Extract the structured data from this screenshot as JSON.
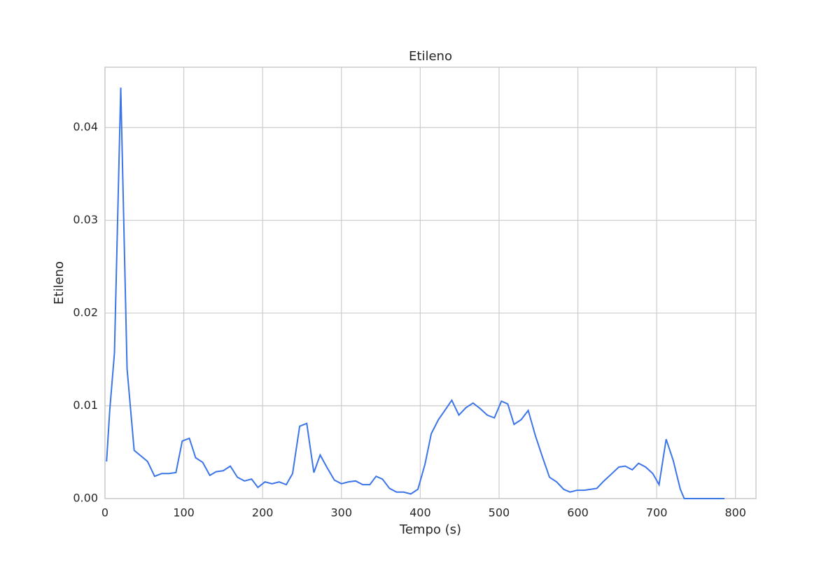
{
  "chart_data": {
    "type": "line",
    "title": "Etileno",
    "x_label": "Tempo (s)",
    "y_label": "Etileno",
    "x": [
      2,
      6,
      12,
      20,
      28,
      37,
      54,
      63,
      72,
      81,
      90,
      98,
      107,
      115,
      124,
      133,
      141,
      150,
      159,
      168,
      177,
      186,
      194,
      203,
      212,
      221,
      230,
      238,
      247,
      256,
      265,
      273,
      282,
      291,
      300,
      309,
      318,
      327,
      336,
      344,
      352,
      361,
      370,
      379,
      388,
      397,
      406,
      414,
      423,
      432,
      440,
      449,
      458,
      467,
      476,
      485,
      494,
      503,
      511,
      519,
      528,
      537,
      546,
      555,
      564,
      573,
      582,
      590,
      599,
      608,
      624,
      633,
      642,
      652,
      660,
      669,
      677,
      686,
      695,
      703,
      712,
      721,
      730,
      735,
      746,
      764,
      786
    ],
    "series": [
      {
        "name": "Etileno",
        "color": "#3b75e8",
        "values": [
          0.004,
          0.0095,
          0.0157,
          0.0443,
          0.014,
          0.0052,
          0.004,
          0.0024,
          0.0027,
          0.0027,
          0.0028,
          0.0062,
          0.0065,
          0.0044,
          0.0039,
          0.0025,
          0.0029,
          0.003,
          0.0035,
          0.0023,
          0.0019,
          0.0021,
          0.0012,
          0.0018,
          0.0016,
          0.0018,
          0.0015,
          0.0027,
          0.0078,
          0.0081,
          0.0028,
          0.0047,
          0.0033,
          0.002,
          0.0016,
          0.0018,
          0.0019,
          0.0015,
          0.0015,
          0.0024,
          0.0021,
          0.0011,
          0.0007,
          0.0007,
          0.0005,
          0.001,
          0.0037,
          0.007,
          0.0085,
          0.0096,
          0.0106,
          0.009,
          0.0098,
          0.0103,
          0.0097,
          0.009,
          0.0087,
          0.0105,
          0.0102,
          0.008,
          0.0085,
          0.0095,
          0.0068,
          0.0045,
          0.0023,
          0.0018,
          0.001,
          0.0007,
          0.0009,
          0.0009,
          0.0011,
          0.0019,
          0.0026,
          0.0034,
          0.0035,
          0.0031,
          0.0038,
          0.0034,
          0.0027,
          0.0015,
          0.0064,
          0.0041,
          0.001,
          0,
          0,
          0,
          0
        ]
      }
    ],
    "xlim": [
      0,
      826
    ],
    "ylim": [
      0,
      0.0465
    ],
    "xticks": [
      0,
      100,
      200,
      300,
      400,
      500,
      600,
      700,
      800
    ],
    "yticks": [
      {
        "value": 0,
        "label": "0.00"
      },
      0.01,
      0.02,
      0.03,
      0.04
    ],
    "grid": true
  }
}
